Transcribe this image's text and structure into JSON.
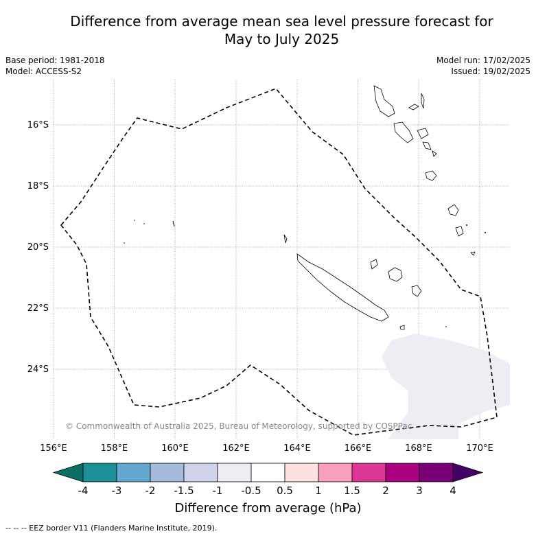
{
  "title_line1": "Difference from average mean sea level pressure forecast for",
  "title_line2": "May to July 2025",
  "meta_left": [
    "Base period: 1981-2018",
    "Model: ACCESS-S2"
  ],
  "meta_right": [
    "Model run: 17/02/2025",
    "Issued: 19/02/2025"
  ],
  "lat_ticks": [
    "16°S",
    "18°S",
    "20°S",
    "22°S",
    "24°S"
  ],
  "lon_ticks": [
    "156°E",
    "158°E",
    "160°E",
    "162°E",
    "164°E",
    "166°E",
    "168°E",
    "170°E"
  ],
  "copyright": "© Commonwealth of Australia 2025, Bureau of Meteorology, supported by COSPPac",
  "colorbar": {
    "labels": [
      "-4",
      "-3",
      "-2",
      "-1.5",
      "-1",
      "-0.5",
      "0.5",
      "1",
      "1.5",
      "2",
      "3",
      "4"
    ],
    "colors": [
      "#0d6e64",
      "#1c9199",
      "#63a8d0",
      "#a5badb",
      "#cfd2e8",
      "#f0ecf3",
      "#ffffff",
      "#fde0e0",
      "#f7a0bc",
      "#dd3796",
      "#ab0080",
      "#7a0077",
      "#450065"
    ],
    "title": "Difference from average (hPa)"
  },
  "footer": "--  --  -- EEZ border V11 (Flanders Marine Institute, 2019)."
}
